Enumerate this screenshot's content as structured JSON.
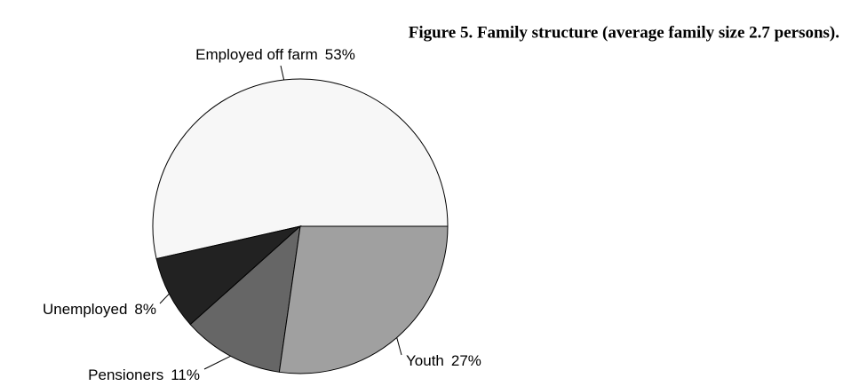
{
  "chart_data": {
    "type": "pie",
    "title": "Figure 5. Family structure (average family size 2.7 persons).",
    "categories": [
      "Employed off farm",
      "Unemployed",
      "Pensioners",
      "Youth"
    ],
    "values": [
      53,
      8,
      11,
      27
    ],
    "value_labels": [
      "53%",
      "8%",
      "11%",
      "27%"
    ],
    "colors": [
      "#f7f7f7",
      "#222222",
      "#666666",
      "#a0a0a0"
    ]
  }
}
